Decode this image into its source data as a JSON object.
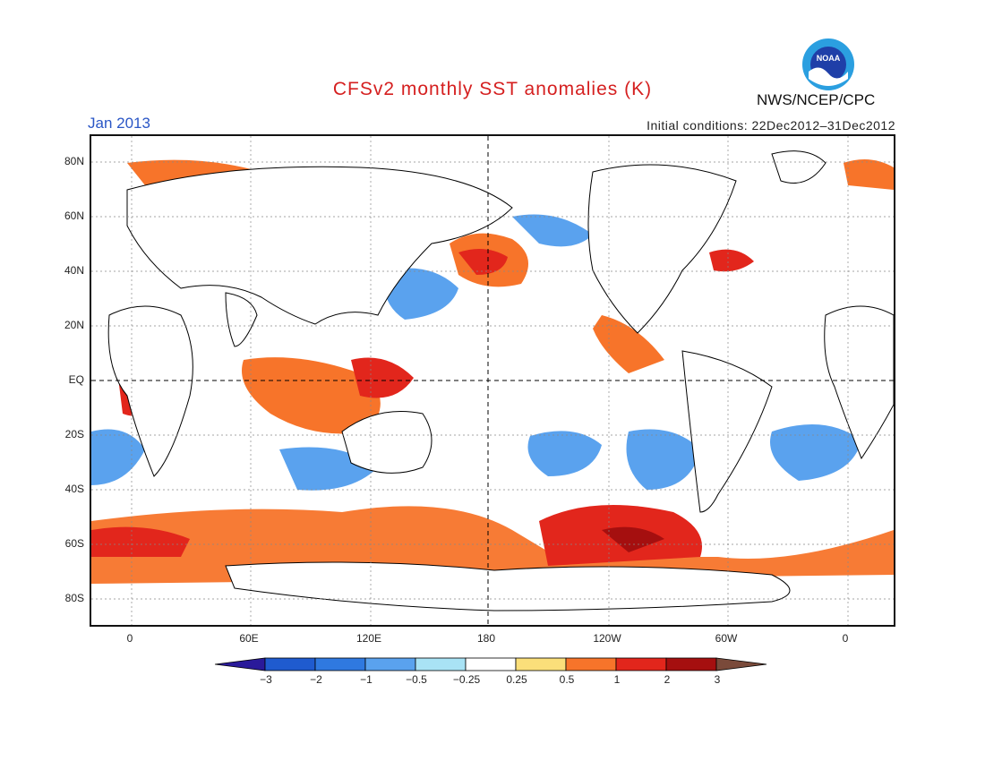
{
  "header": {
    "title": "CFSv2 monthly SST anomalies (K)",
    "month": "Jan 2013",
    "initial_conditions": "Initial conditions: 22Dec2012–31Dec2012",
    "agency": "NWS/NCEP/CPC",
    "logo_text": "NOAA"
  },
  "axes": {
    "y_ticks": [
      "80N",
      "60N",
      "40N",
      "20N",
      "EQ",
      "20S",
      "40S",
      "60S",
      "80S"
    ],
    "x_ticks": [
      "0",
      "60E",
      "120E",
      "180",
      "120W",
      "60W",
      "0"
    ]
  },
  "colorbar": {
    "labels": [
      "−3",
      "−2",
      "−1",
      "−0.5",
      "−0.25",
      "0.25",
      "0.5",
      "1",
      "2",
      "3"
    ],
    "colors": [
      "#2a1a9a",
      "#1f5bcf",
      "#2f79e0",
      "#5aa2ee",
      "#a9e3f5",
      "#ffffff",
      "#fbdf7a",
      "#f7742a",
      "#e2261c",
      "#a50f0f",
      "#7a4a3a"
    ]
  },
  "legend_colors": {
    "land": "#ffffff",
    "ocean_neutral": "#ffffff",
    "warm": "#f7742a",
    "hot": "#e2261c",
    "very_hot": "#a50f0f",
    "cool": "#5aa2ee",
    "cold": "#2f79e0"
  }
}
